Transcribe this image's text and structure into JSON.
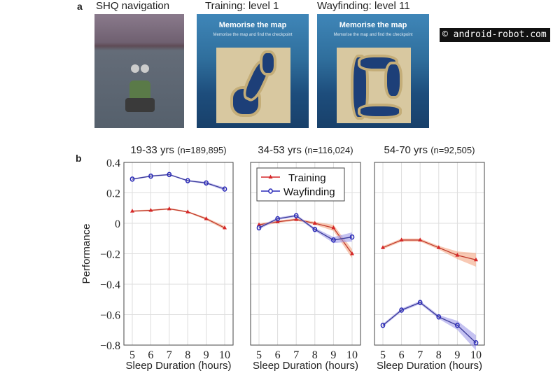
{
  "panel_a": {
    "letter": "a",
    "titles": [
      "SHQ navigation",
      "Training: level 1",
      "Wayfinding: level 11"
    ],
    "map_heading": "Memorise the map",
    "map_sub": "Memorise the map and find the checkpoint"
  },
  "panel_b": {
    "letter": "b"
  },
  "watermark": "© android-robot.com",
  "colors": {
    "training": "#d62728",
    "wayfinding": "#2a2ab8",
    "training_band": "#f4a582",
    "wayfinding_band": "#9e9ae8"
  },
  "chart_data": [
    {
      "type": "line",
      "title": "19-33 yrs",
      "n_label": "(n=189,895)",
      "xlabel": "Sleep Duration (hours)",
      "ylabel": "Performance",
      "x": [
        5,
        6,
        7,
        8,
        9,
        10
      ],
      "xlim": [
        5,
        10
      ],
      "ylim": [
        -0.8,
        0.4
      ],
      "yticks": [
        "0.4",
        "0.2",
        "0",
        "−0.2",
        "−0.4",
        "−0.6",
        "−0.8"
      ],
      "grid": true,
      "series": [
        {
          "name": "Training",
          "values": [
            0.08,
            0.085,
            0.095,
            0.075,
            0.03,
            -0.03
          ],
          "ci": [
            0.005,
            0.005,
            0.005,
            0.005,
            0.008,
            0.012
          ]
        },
        {
          "name": "Wayfinding",
          "values": [
            0.29,
            0.31,
            0.32,
            0.28,
            0.265,
            0.225
          ],
          "ci": [
            0.005,
            0.005,
            0.005,
            0.005,
            0.007,
            0.01
          ]
        }
      ]
    },
    {
      "type": "line",
      "title": "34-53 yrs",
      "n_label": "(n=116,024)",
      "xlabel": "Sleep Duration (hours)",
      "ylabel": "",
      "x": [
        5,
        6,
        7,
        8,
        9,
        10
      ],
      "xlim": [
        5,
        10
      ],
      "ylim": [
        -0.8,
        0.4
      ],
      "grid": true,
      "legend": "top-left",
      "legend_entries": [
        "Training",
        "Wayfinding"
      ],
      "series": [
        {
          "name": "Training",
          "values": [
            -0.01,
            0.01,
            0.025,
            0.0,
            -0.03,
            -0.2
          ],
          "ci": [
            0.01,
            0.008,
            0.008,
            0.01,
            0.02,
            0.03
          ]
        },
        {
          "name": "Wayfinding",
          "values": [
            -0.03,
            0.03,
            0.05,
            -0.04,
            -0.11,
            -0.09
          ],
          "ci": [
            0.01,
            0.008,
            0.008,
            0.01,
            0.02,
            0.03
          ]
        }
      ]
    },
    {
      "type": "line",
      "title": "54-70 yrs",
      "n_label": "(n=92,505)",
      "xlabel": "Sleep Duration (hours)",
      "ylabel": "",
      "x": [
        5,
        6,
        7,
        8,
        9,
        10
      ],
      "xlim": [
        5,
        10
      ],
      "ylim": [
        -0.8,
        0.4
      ],
      "grid": true,
      "series": [
        {
          "name": "Training",
          "values": [
            -0.16,
            -0.11,
            -0.11,
            -0.16,
            -0.21,
            -0.24
          ],
          "ci": [
            0.01,
            0.01,
            0.01,
            0.012,
            0.025,
            0.045
          ]
        },
        {
          "name": "Wayfinding",
          "values": [
            -0.67,
            -0.57,
            -0.52,
            -0.615,
            -0.67,
            -0.785
          ],
          "ci": [
            0.01,
            0.01,
            0.01,
            0.012,
            0.03,
            0.05
          ]
        }
      ]
    }
  ]
}
